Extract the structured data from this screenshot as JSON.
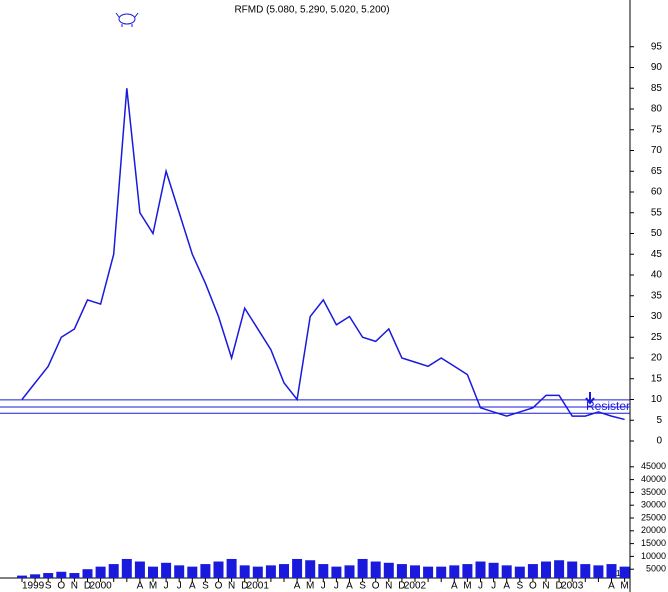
{
  "chart_data": {
    "type": "line",
    "title": "RFMD (5.080, 5.290, 5.020, 5.200)",
    "categories": [
      "1999",
      null,
      "S",
      "O",
      "N",
      "D",
      "2000",
      null,
      null,
      "A",
      "M",
      "J",
      "J",
      "A",
      "S",
      "O",
      "N",
      "D",
      "2001",
      null,
      null,
      "A",
      "M",
      "J",
      "J",
      "A",
      "S",
      "O",
      "N",
      "D",
      "2002",
      null,
      null,
      "A",
      "M",
      "J",
      "J",
      "A",
      "S",
      "O",
      "N",
      "D",
      "2003",
      null,
      null,
      "A",
      "M"
    ],
    "series": [
      {
        "name": "RFMD",
        "color": "#1a1adc",
        "values": [
          10,
          14,
          18,
          25,
          27,
          34,
          33,
          45,
          85,
          55,
          50,
          65,
          55,
          45,
          38,
          30,
          20,
          32,
          27,
          22,
          14,
          10,
          30,
          34,
          28,
          30,
          25,
          24,
          27,
          20,
          19,
          18,
          20,
          18,
          16,
          8,
          7,
          6,
          7,
          8,
          11,
          11,
          6,
          6,
          7,
          6,
          5.2
        ]
      }
    ],
    "volume": {
      "color": "#1a1adc",
      "values": [
        2500,
        3000,
        3500,
        4000,
        3500,
        5000,
        6000,
        7000,
        9000,
        8000,
        6000,
        7500,
        6500,
        6000,
        7000,
        8000,
        9000,
        6500,
        6000,
        6500,
        7000,
        9000,
        8500,
        7000,
        6000,
        6500,
        9000,
        8000,
        7500,
        7000,
        6500,
        6000,
        6000,
        6500,
        7000,
        8000,
        7500,
        6500,
        6000,
        7000,
        8000,
        8500,
        8000,
        7000,
        6500,
        7000,
        6000
      ]
    },
    "volume_unit": "x10",
    "ylim": [
      0,
      100
    ],
    "yticks": [
      0,
      5,
      10,
      15,
      20,
      25,
      30,
      35,
      40,
      45,
      50,
      55,
      60,
      65,
      70,
      75,
      80,
      85,
      90,
      95
    ],
    "volume_ylim": [
      0,
      50000
    ],
    "volume_yticks": [
      5000,
      10000,
      15000,
      20000,
      25000,
      30000,
      35000,
      40000,
      45000
    ],
    "levels": [
      9.9,
      8.2,
      6.7
    ],
    "level_label": "Resister"
  }
}
